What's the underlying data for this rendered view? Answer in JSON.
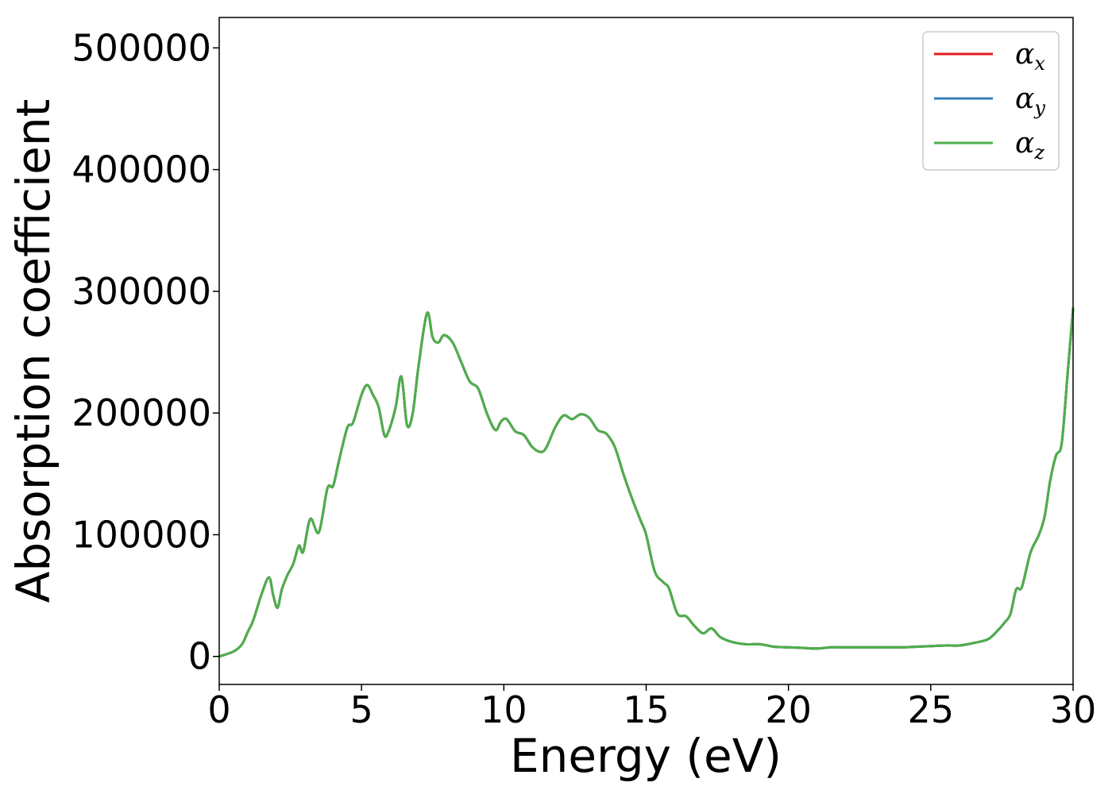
{
  "chart_data": {
    "type": "line",
    "xlabel": "Energy (eV)",
    "ylabel": "Absorption coefficient",
    "xlim": [
      0,
      30
    ],
    "ylim": [
      -23000,
      525000
    ],
    "x_ticks": [
      0,
      5,
      10,
      15,
      20,
      25,
      30
    ],
    "x_tick_labels": [
      "0",
      "5",
      "10",
      "15",
      "20",
      "25",
      "30"
    ],
    "y_ticks": [
      0,
      100000,
      200000,
      300000,
      400000,
      500000
    ],
    "y_tick_labels": [
      "0",
      "100000",
      "200000",
      "300000",
      "400000",
      "500000"
    ],
    "grid": false,
    "legend_position": "top-right",
    "x": [
      0,
      0.5,
      0.8,
      1.0,
      1.2,
      1.5,
      1.75,
      1.9,
      2.05,
      2.2,
      2.4,
      2.6,
      2.8,
      2.95,
      3.2,
      3.5,
      3.8,
      4.0,
      4.2,
      4.5,
      4.7,
      5.0,
      5.2,
      5.4,
      5.6,
      5.8,
      5.95,
      6.2,
      6.4,
      6.6,
      6.8,
      7.0,
      7.3,
      7.5,
      7.7,
      7.9,
      8.2,
      8.5,
      8.8,
      9.1,
      9.4,
      9.7,
      9.9,
      10.1,
      10.4,
      10.7,
      11.0,
      11.3,
      11.5,
      11.8,
      12.1,
      12.4,
      12.7,
      13.0,
      13.3,
      13.6,
      13.9,
      14.2,
      14.5,
      14.8,
      15.0,
      15.3,
      15.6,
      15.8,
      16.1,
      16.4,
      16.7,
      17.0,
      17.3,
      17.6,
      18.0,
      18.5,
      19.0,
      19.5,
      20.0,
      20.5,
      21.0,
      21.5,
      22.0,
      22.5,
      23.0,
      23.5,
      24.0,
      24.5,
      25.0,
      25.5,
      26.0,
      26.5,
      27.0,
      27.3,
      27.6,
      27.8,
      28.0,
      28.2,
      28.5,
      28.8,
      29.0,
      29.2,
      29.4,
      29.6,
      29.8,
      30.0
    ],
    "series": [
      {
        "name": "αx",
        "color": "#e41a1c",
        "values": [
          0,
          4000,
          10000,
          20000,
          30000,
          52000,
          65000,
          50000,
          40000,
          55000,
          67000,
          76000,
          91000,
          86000,
          113000,
          102000,
          138000,
          140000,
          160000,
          188000,
          192000,
          215000,
          223000,
          215000,
          205000,
          182000,
          185000,
          205000,
          230000,
          190000,
          200000,
          238000,
          282000,
          262000,
          258000,
          264000,
          258000,
          242000,
          226000,
          220000,
          200000,
          186000,
          193000,
          195000,
          185000,
          182000,
          172000,
          168000,
          172000,
          188000,
          198000,
          195000,
          199000,
          196000,
          186000,
          183000,
          172000,
          150000,
          130000,
          112000,
          100000,
          70000,
          61000,
          56000,
          35000,
          33000,
          25000,
          19000,
          23000,
          16000,
          12000,
          10000,
          10000,
          8000,
          7500,
          7000,
          6500,
          7500,
          7500,
          7500,
          7500,
          7500,
          7500,
          8000,
          8500,
          9000,
          9000,
          11000,
          14000,
          20000,
          28000,
          35000,
          55000,
          57000,
          85000,
          100000,
          115000,
          145000,
          165000,
          175000,
          230000,
          286000
        ]
      },
      {
        "name": "αy",
        "color": "#377eb8",
        "values": [
          0,
          4000,
          10000,
          20000,
          30000,
          52000,
          65000,
          50000,
          40000,
          55000,
          67000,
          76000,
          91000,
          86000,
          113000,
          102000,
          138000,
          140000,
          160000,
          188000,
          192000,
          215000,
          223000,
          215000,
          205000,
          182000,
          185000,
          205000,
          230000,
          190000,
          200000,
          238000,
          282000,
          262000,
          258000,
          264000,
          258000,
          242000,
          226000,
          220000,
          200000,
          186000,
          193000,
          195000,
          185000,
          182000,
          172000,
          168000,
          172000,
          188000,
          198000,
          195000,
          199000,
          196000,
          186000,
          183000,
          172000,
          150000,
          130000,
          112000,
          100000,
          70000,
          61000,
          56000,
          35000,
          33000,
          25000,
          19000,
          23000,
          16000,
          12000,
          10000,
          10000,
          8000,
          7500,
          7000,
          6500,
          7500,
          7500,
          7500,
          7500,
          7500,
          7500,
          8000,
          8500,
          9000,
          9000,
          11000,
          14000,
          20000,
          28000,
          35000,
          55000,
          57000,
          85000,
          100000,
          115000,
          145000,
          165000,
          175000,
          230000,
          286000
        ]
      },
      {
        "name": "αz",
        "color": "#4daf4a",
        "values": [
          0,
          4000,
          10000,
          20000,
          30000,
          52000,
          65000,
          50000,
          40000,
          55000,
          67000,
          76000,
          91000,
          86000,
          113000,
          102000,
          138000,
          140000,
          160000,
          188000,
          192000,
          215000,
          223000,
          215000,
          205000,
          182000,
          185000,
          205000,
          230000,
          190000,
          200000,
          238000,
          282000,
          262000,
          258000,
          264000,
          258000,
          242000,
          226000,
          220000,
          200000,
          186000,
          193000,
          195000,
          185000,
          182000,
          172000,
          168000,
          172000,
          188000,
          198000,
          195000,
          199000,
          196000,
          186000,
          183000,
          172000,
          150000,
          130000,
          112000,
          100000,
          70000,
          61000,
          56000,
          35000,
          33000,
          25000,
          19000,
          23000,
          16000,
          12000,
          10000,
          10000,
          8000,
          7500,
          7000,
          6500,
          7500,
          7500,
          7500,
          7500,
          7500,
          7500,
          8000,
          8500,
          9000,
          9000,
          11000,
          14000,
          20000,
          28000,
          35000,
          55000,
          57000,
          85000,
          100000,
          115000,
          145000,
          165000,
          175000,
          230000,
          286000
        ]
      }
    ],
    "legend": [
      {
        "symbol": "α",
        "subscript": "x",
        "color": "#e41a1c"
      },
      {
        "symbol": "α",
        "subscript": "y",
        "color": "#377eb8"
      },
      {
        "symbol": "α",
        "subscript": "z",
        "color": "#4daf4a"
      }
    ]
  }
}
